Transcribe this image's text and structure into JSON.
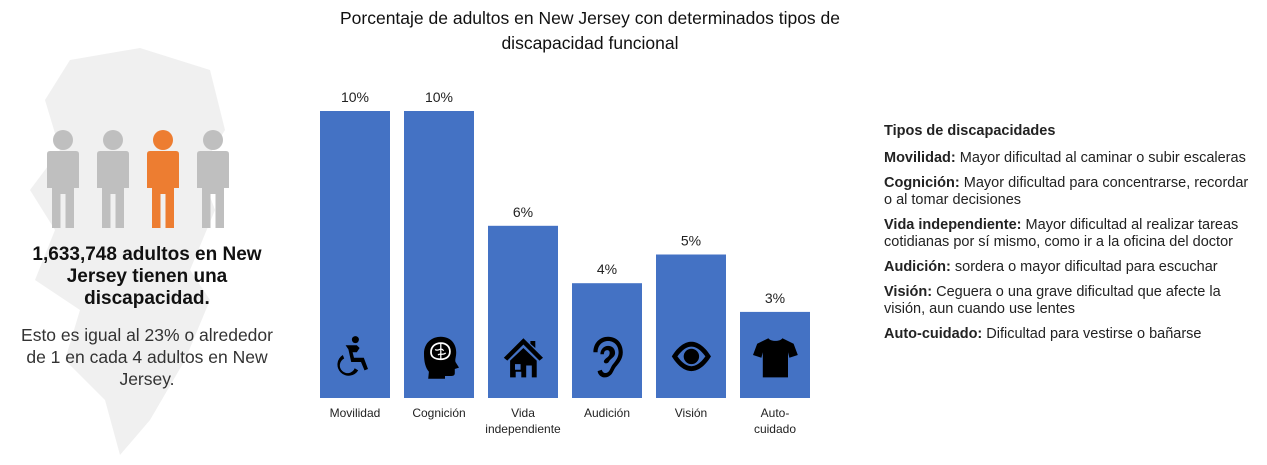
{
  "stats": {
    "headline": "1,633,748 adultos en New Jersey tienen una discapacidad.",
    "detail": "Esto es igual al 23% o alrededor de 1 en cada 4 adultos en New Jersey."
  },
  "colors": {
    "bar": "#4472C4",
    "person_gray": "#BFBFBF",
    "person_highlight": "#ED7D31",
    "state_bg": "#F0F0F0"
  },
  "chart_data": {
    "type": "bar",
    "title": "Porcentaje de adultos en New Jersey con determinados tipos de discapacidad funcional",
    "categories": [
      "Movilidad",
      "Cognición",
      "Vida independiente",
      "Audición",
      "Visión",
      "Auto-cuidado"
    ],
    "category_lines": [
      [
        "Movilidad"
      ],
      [
        "Cognición"
      ],
      [
        "Vida",
        "independiente"
      ],
      [
        "Audición"
      ],
      [
        "Visión"
      ],
      [
        "Auto-",
        "cuidado"
      ]
    ],
    "values": [
      10,
      10,
      6,
      4,
      5,
      3
    ],
    "data_labels": [
      "10%",
      "10%",
      "6%",
      "4%",
      "5%",
      "3%"
    ],
    "icons": [
      "wheelchair-icon",
      "brain-head-icon",
      "house-icon",
      "ear-icon",
      "eye-icon",
      "shirt-icon"
    ],
    "ylim": [
      0,
      10
    ],
    "grid": false,
    "legend": "right"
  },
  "legend": {
    "title": "Tipos de discapacidades",
    "items": [
      {
        "term": "Movilidad:",
        "desc": "Mayor dificultad al caminar o subir escaleras"
      },
      {
        "term": "Cognición:",
        "desc": "Mayor dificultad para concentrarse, recordar o al tomar decisiones"
      },
      {
        "term": "Vida independiente:",
        "desc": "Mayor dificultad al realizar tareas cotidianas por sí mismo, como ir a la oficina del doctor"
      },
      {
        "term": "Audición:",
        "desc": "sordera o mayor dificultad para escuchar"
      },
      {
        "term": "Visión:",
        "desc": "Ceguera o una grave dificultad que afecte la visión, aun cuando use lentes"
      },
      {
        "term": "Auto-cuidado:",
        "desc": "Dificultad para vestirse o bañarse"
      }
    ]
  }
}
